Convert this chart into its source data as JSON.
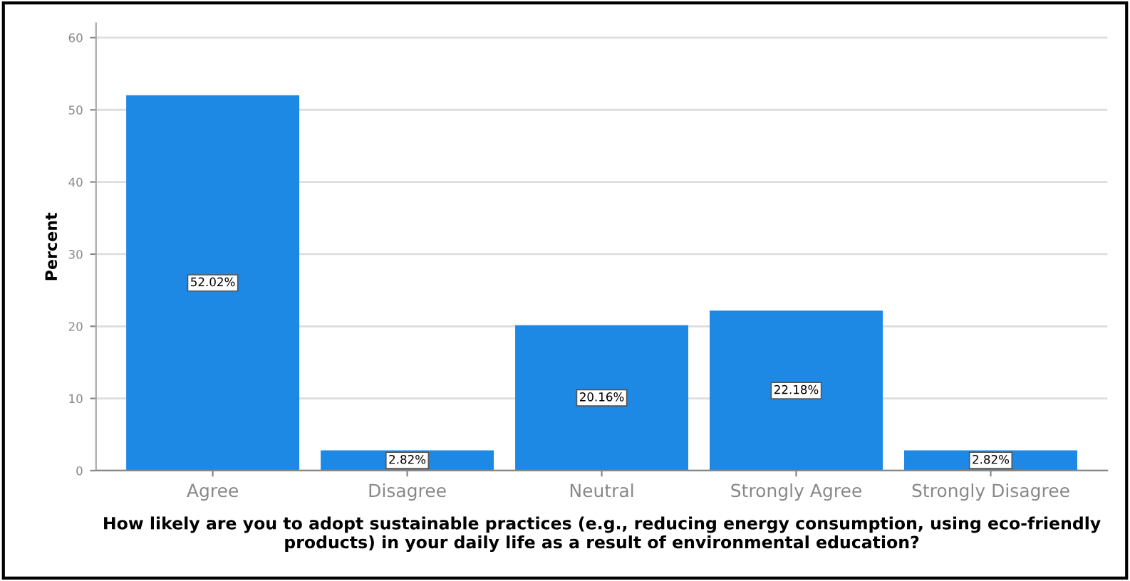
{
  "chart_data": {
    "type": "bar",
    "xlabel": "How likely are you to adopt sustainable practices (e.g., reducing energy consumption, using eco-friendly products) in your daily life as a result of environmental education?",
    "ylabel": "Percent",
    "categories": [
      "Agree",
      "Disagree",
      "Neutral",
      "Strongly Agree",
      "Strongly Disagree"
    ],
    "values": [
      52.02,
      2.82,
      20.16,
      22.18,
      2.82
    ],
    "value_labels": [
      "52.02%",
      "2.82%",
      "20.16%",
      "22.18%",
      "2.82%"
    ],
    "color": "#1e88e5",
    "ylim": [
      0,
      62
    ],
    "yticks": [
      0,
      10,
      20,
      30,
      40,
      50,
      60
    ],
    "grid": "y"
  }
}
